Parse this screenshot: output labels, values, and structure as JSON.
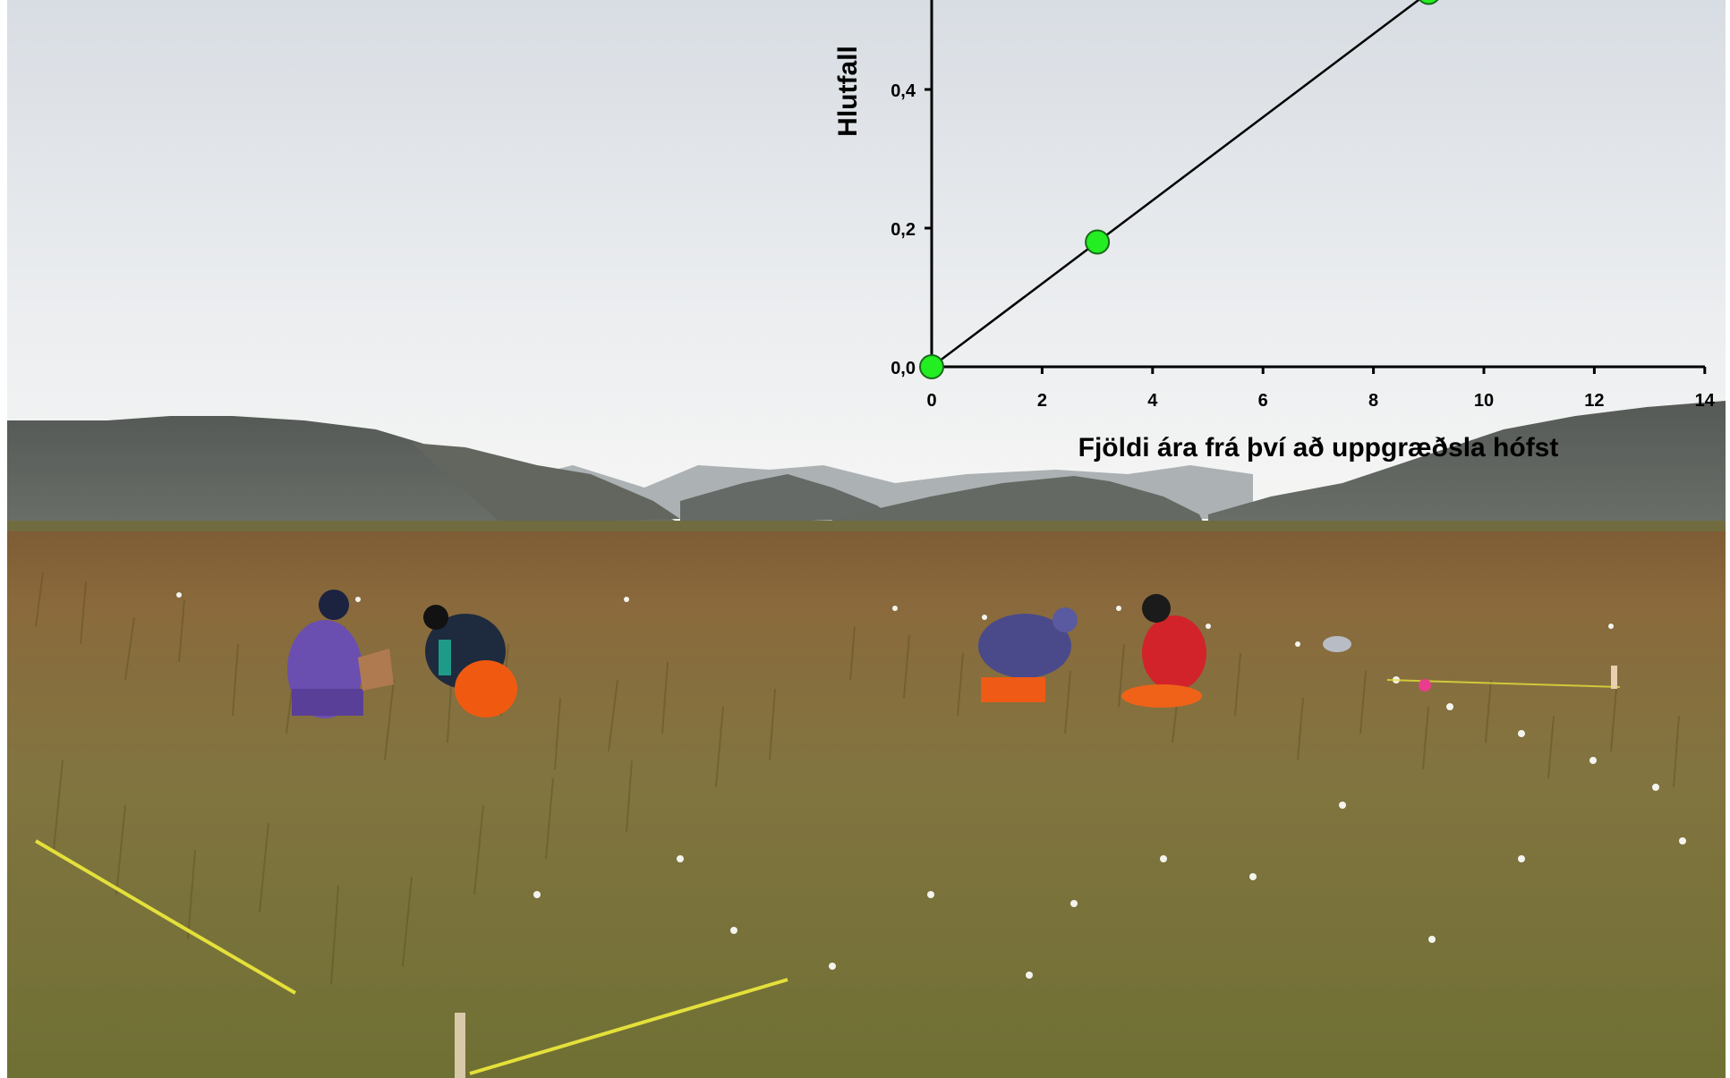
{
  "chart_data": {
    "type": "line",
    "title": "",
    "xlabel": "Fjöldi ára frá því að uppgræðsla hófst",
    "ylabel": "Hlutfall",
    "xlim": [
      0,
      14
    ],
    "ylim": [
      0,
      0.55
    ],
    "x_ticks": [
      {
        "value": 0,
        "label": "0"
      },
      {
        "value": 2,
        "label": "2"
      },
      {
        "value": 4,
        "label": "4"
      },
      {
        "value": 6,
        "label": "6"
      },
      {
        "value": 8,
        "label": "8"
      },
      {
        "value": 10,
        "label": "10"
      },
      {
        "value": 12,
        "label": "12"
      },
      {
        "value": 14,
        "label": "14"
      }
    ],
    "y_ticks": [
      {
        "value": 0.0,
        "label": "0,0"
      },
      {
        "value": 0.2,
        "label": "0,2"
      },
      {
        "value": 0.4,
        "label": "0,4"
      }
    ],
    "series": [
      {
        "x": [
          0,
          3,
          9
        ],
        "y": [
          0.0,
          0.18,
          0.54
        ],
        "marker_color": "#22ee22",
        "line_color": "#000000"
      }
    ],
    "grid": false,
    "legend": "none",
    "background": "photograph of a grassy bog landscape with mountains and four people kneeling in the field"
  },
  "colors": {
    "sky_top": "#dfe4ea",
    "sky_bottom": "#f7f7f6",
    "mountain": "#5e625e",
    "mountain_far": "#8a9094",
    "field": "#7a6a3a",
    "grass": "#8a7a3e",
    "marker": "#22ee22"
  }
}
